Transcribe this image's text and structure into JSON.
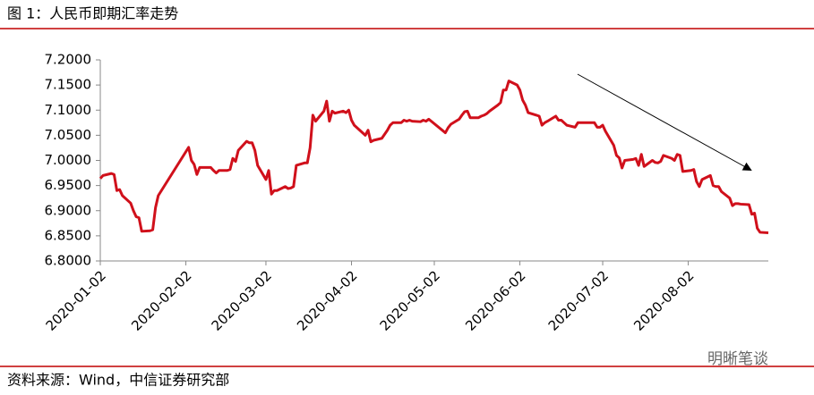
{
  "chart_data": {
    "type": "line",
    "title": "图 1：人民币即期汇率走势",
    "source": "资料来源：Wind，中信证券研究部",
    "watermark": "明晰笔谈",
    "color": "#d0101b",
    "x": [
      "2020-01-02",
      "2020-01-03",
      "2020-01-06",
      "2020-01-07",
      "2020-01-08",
      "2020-01-09",
      "2020-01-10",
      "2020-01-13",
      "2020-01-14",
      "2020-01-15",
      "2020-01-16",
      "2020-01-17",
      "2020-01-20",
      "2020-01-21",
      "2020-01-22",
      "2020-01-23",
      "2020-02-03",
      "2020-02-04",
      "2020-02-05",
      "2020-02-06",
      "2020-02-07",
      "2020-02-10",
      "2020-02-11",
      "2020-02-12",
      "2020-02-13",
      "2020-02-14",
      "2020-02-17",
      "2020-02-18",
      "2020-02-19",
      "2020-02-20",
      "2020-02-21",
      "2020-02-24",
      "2020-02-25",
      "2020-02-26",
      "2020-02-27",
      "2020-02-28",
      "2020-03-02",
      "2020-03-03",
      "2020-03-04",
      "2020-03-05",
      "2020-03-06",
      "2020-03-09",
      "2020-03-10",
      "2020-03-11",
      "2020-03-12",
      "2020-03-13",
      "2020-03-16",
      "2020-03-17",
      "2020-03-18",
      "2020-03-19",
      "2020-03-20",
      "2020-03-23",
      "2020-03-24",
      "2020-03-25",
      "2020-03-26",
      "2020-03-27",
      "2020-03-30",
      "2020-03-31",
      "2020-04-01",
      "2020-04-02",
      "2020-04-03",
      "2020-04-07",
      "2020-04-08",
      "2020-04-09",
      "2020-04-10",
      "2020-04-13",
      "2020-04-14",
      "2020-04-15",
      "2020-04-16",
      "2020-04-17",
      "2020-04-20",
      "2020-04-21",
      "2020-04-22",
      "2020-04-23",
      "2020-04-24",
      "2020-04-27",
      "2020-04-28",
      "2020-04-29",
      "2020-04-30",
      "2020-05-06",
      "2020-05-07",
      "2020-05-08",
      "2020-05-11",
      "2020-05-12",
      "2020-05-13",
      "2020-05-14",
      "2020-05-15",
      "2020-05-18",
      "2020-05-19",
      "2020-05-20",
      "2020-05-21",
      "2020-05-22",
      "2020-05-25",
      "2020-05-26",
      "2020-05-27",
      "2020-05-28",
      "2020-05-29",
      "2020-06-01",
      "2020-06-02",
      "2020-06-03",
      "2020-06-04",
      "2020-06-05",
      "2020-06-08",
      "2020-06-09",
      "2020-06-10",
      "2020-06-11",
      "2020-06-12",
      "2020-06-15",
      "2020-06-16",
      "2020-06-17",
      "2020-06-18",
      "2020-06-19",
      "2020-06-22",
      "2020-06-23",
      "2020-06-24",
      "2020-06-29",
      "2020-06-30",
      "2020-07-01",
      "2020-07-02",
      "2020-07-03",
      "2020-07-06",
      "2020-07-07",
      "2020-07-08",
      "2020-07-09",
      "2020-07-10",
      "2020-07-13",
      "2020-07-14",
      "2020-07-15",
      "2020-07-16",
      "2020-07-17",
      "2020-07-20",
      "2020-07-21",
      "2020-07-22",
      "2020-07-23",
      "2020-07-24",
      "2020-07-27",
      "2020-07-28",
      "2020-07-29",
      "2020-07-30",
      "2020-07-31",
      "2020-08-03",
      "2020-08-04",
      "2020-08-05",
      "2020-08-06",
      "2020-08-07",
      "2020-08-10",
      "2020-08-11",
      "2020-08-12",
      "2020-08-13",
      "2020-08-14",
      "2020-08-17",
      "2020-08-18",
      "2020-08-19",
      "2020-08-20",
      "2020-08-21",
      "2020-08-24",
      "2020-08-25",
      "2020-08-26",
      "2020-08-27",
      "2020-08-28",
      "2020-08-31"
    ],
    "values": [
      6.964,
      6.97,
      6.974,
      6.972,
      6.94,
      6.942,
      6.93,
      6.915,
      6.9,
      6.888,
      6.886,
      6.859,
      6.86,
      6.862,
      6.906,
      6.93,
      7.026,
      7.0,
      6.992,
      6.972,
      6.986,
      6.986,
      6.986,
      6.98,
      6.975,
      6.98,
      6.98,
      6.982,
      7.004,
      6.998,
      7.02,
      7.038,
      7.035,
      7.035,
      7.02,
      6.99,
      6.962,
      6.98,
      6.933,
      6.94,
      6.94,
      6.948,
      6.944,
      6.945,
      6.948,
      6.99,
      6.995,
      6.995,
      7.025,
      7.09,
      7.078,
      7.098,
      7.118,
      7.078,
      7.098,
      7.094,
      7.098,
      7.095,
      7.1,
      7.08,
      7.07,
      7.05,
      7.06,
      7.037,
      7.04,
      7.044,
      7.052,
      7.06,
      7.07,
      7.075,
      7.075,
      7.08,
      7.078,
      7.08,
      7.078,
      7.077,
      7.08,
      7.078,
      7.082,
      7.055,
      7.065,
      7.072,
      7.082,
      7.09,
      7.097,
      7.098,
      7.085,
      7.085,
      7.088,
      7.09,
      7.093,
      7.098,
      7.11,
      7.115,
      7.14,
      7.14,
      7.158,
      7.15,
      7.14,
      7.12,
      7.11,
      7.095,
      7.09,
      7.088,
      7.07,
      7.075,
      7.078,
      7.088,
      7.08,
      7.08,
      7.075,
      7.07,
      7.066,
      7.075,
      7.075,
      7.075,
      7.066,
      7.066,
      7.07,
      7.058,
      7.03,
      7.01,
      7.005,
      6.985,
      7.0,
      7.002,
      7.004,
      6.99,
      7.012,
      6.988,
      7.0,
      6.996,
      6.995,
      6.998,
      7.01,
      7.004,
      7.0,
      7.012,
      7.01,
      6.978,
      6.98,
      6.982,
      6.958,
      6.948,
      6.962,
      6.97,
      6.95,
      6.948,
      6.948,
      6.938,
      6.925,
      6.91,
      6.914,
      6.914,
      6.913,
      6.912,
      6.893,
      6.895,
      6.865,
      6.857,
      6.856
    ],
    "xlim": [
      "2020-01-02",
      "2020-08-31"
    ],
    "xticks": [
      "2020-01-02",
      "2020-02-02",
      "2020-03-02",
      "2020-04-02",
      "2020-05-02",
      "2020-06-02",
      "2020-07-02",
      "2020-08-02"
    ],
    "ylim": [
      6.8,
      7.2
    ],
    "yticks": [
      {
        "value": 6.8,
        "label": "6.8000"
      },
      {
        "value": 6.85,
        "label": "6.8500"
      },
      {
        "value": 6.9,
        "label": "6.9000"
      },
      {
        "value": 6.95,
        "label": "6.9500"
      },
      {
        "value": 7.0,
        "label": "7.0000"
      },
      {
        "value": 7.05,
        "label": "7.0500"
      },
      {
        "value": 7.1,
        "label": "7.1000"
      },
      {
        "value": 7.15,
        "label": "7.1500"
      },
      {
        "value": 7.2,
        "label": "7.2000"
      }
    ],
    "grid": false
  }
}
